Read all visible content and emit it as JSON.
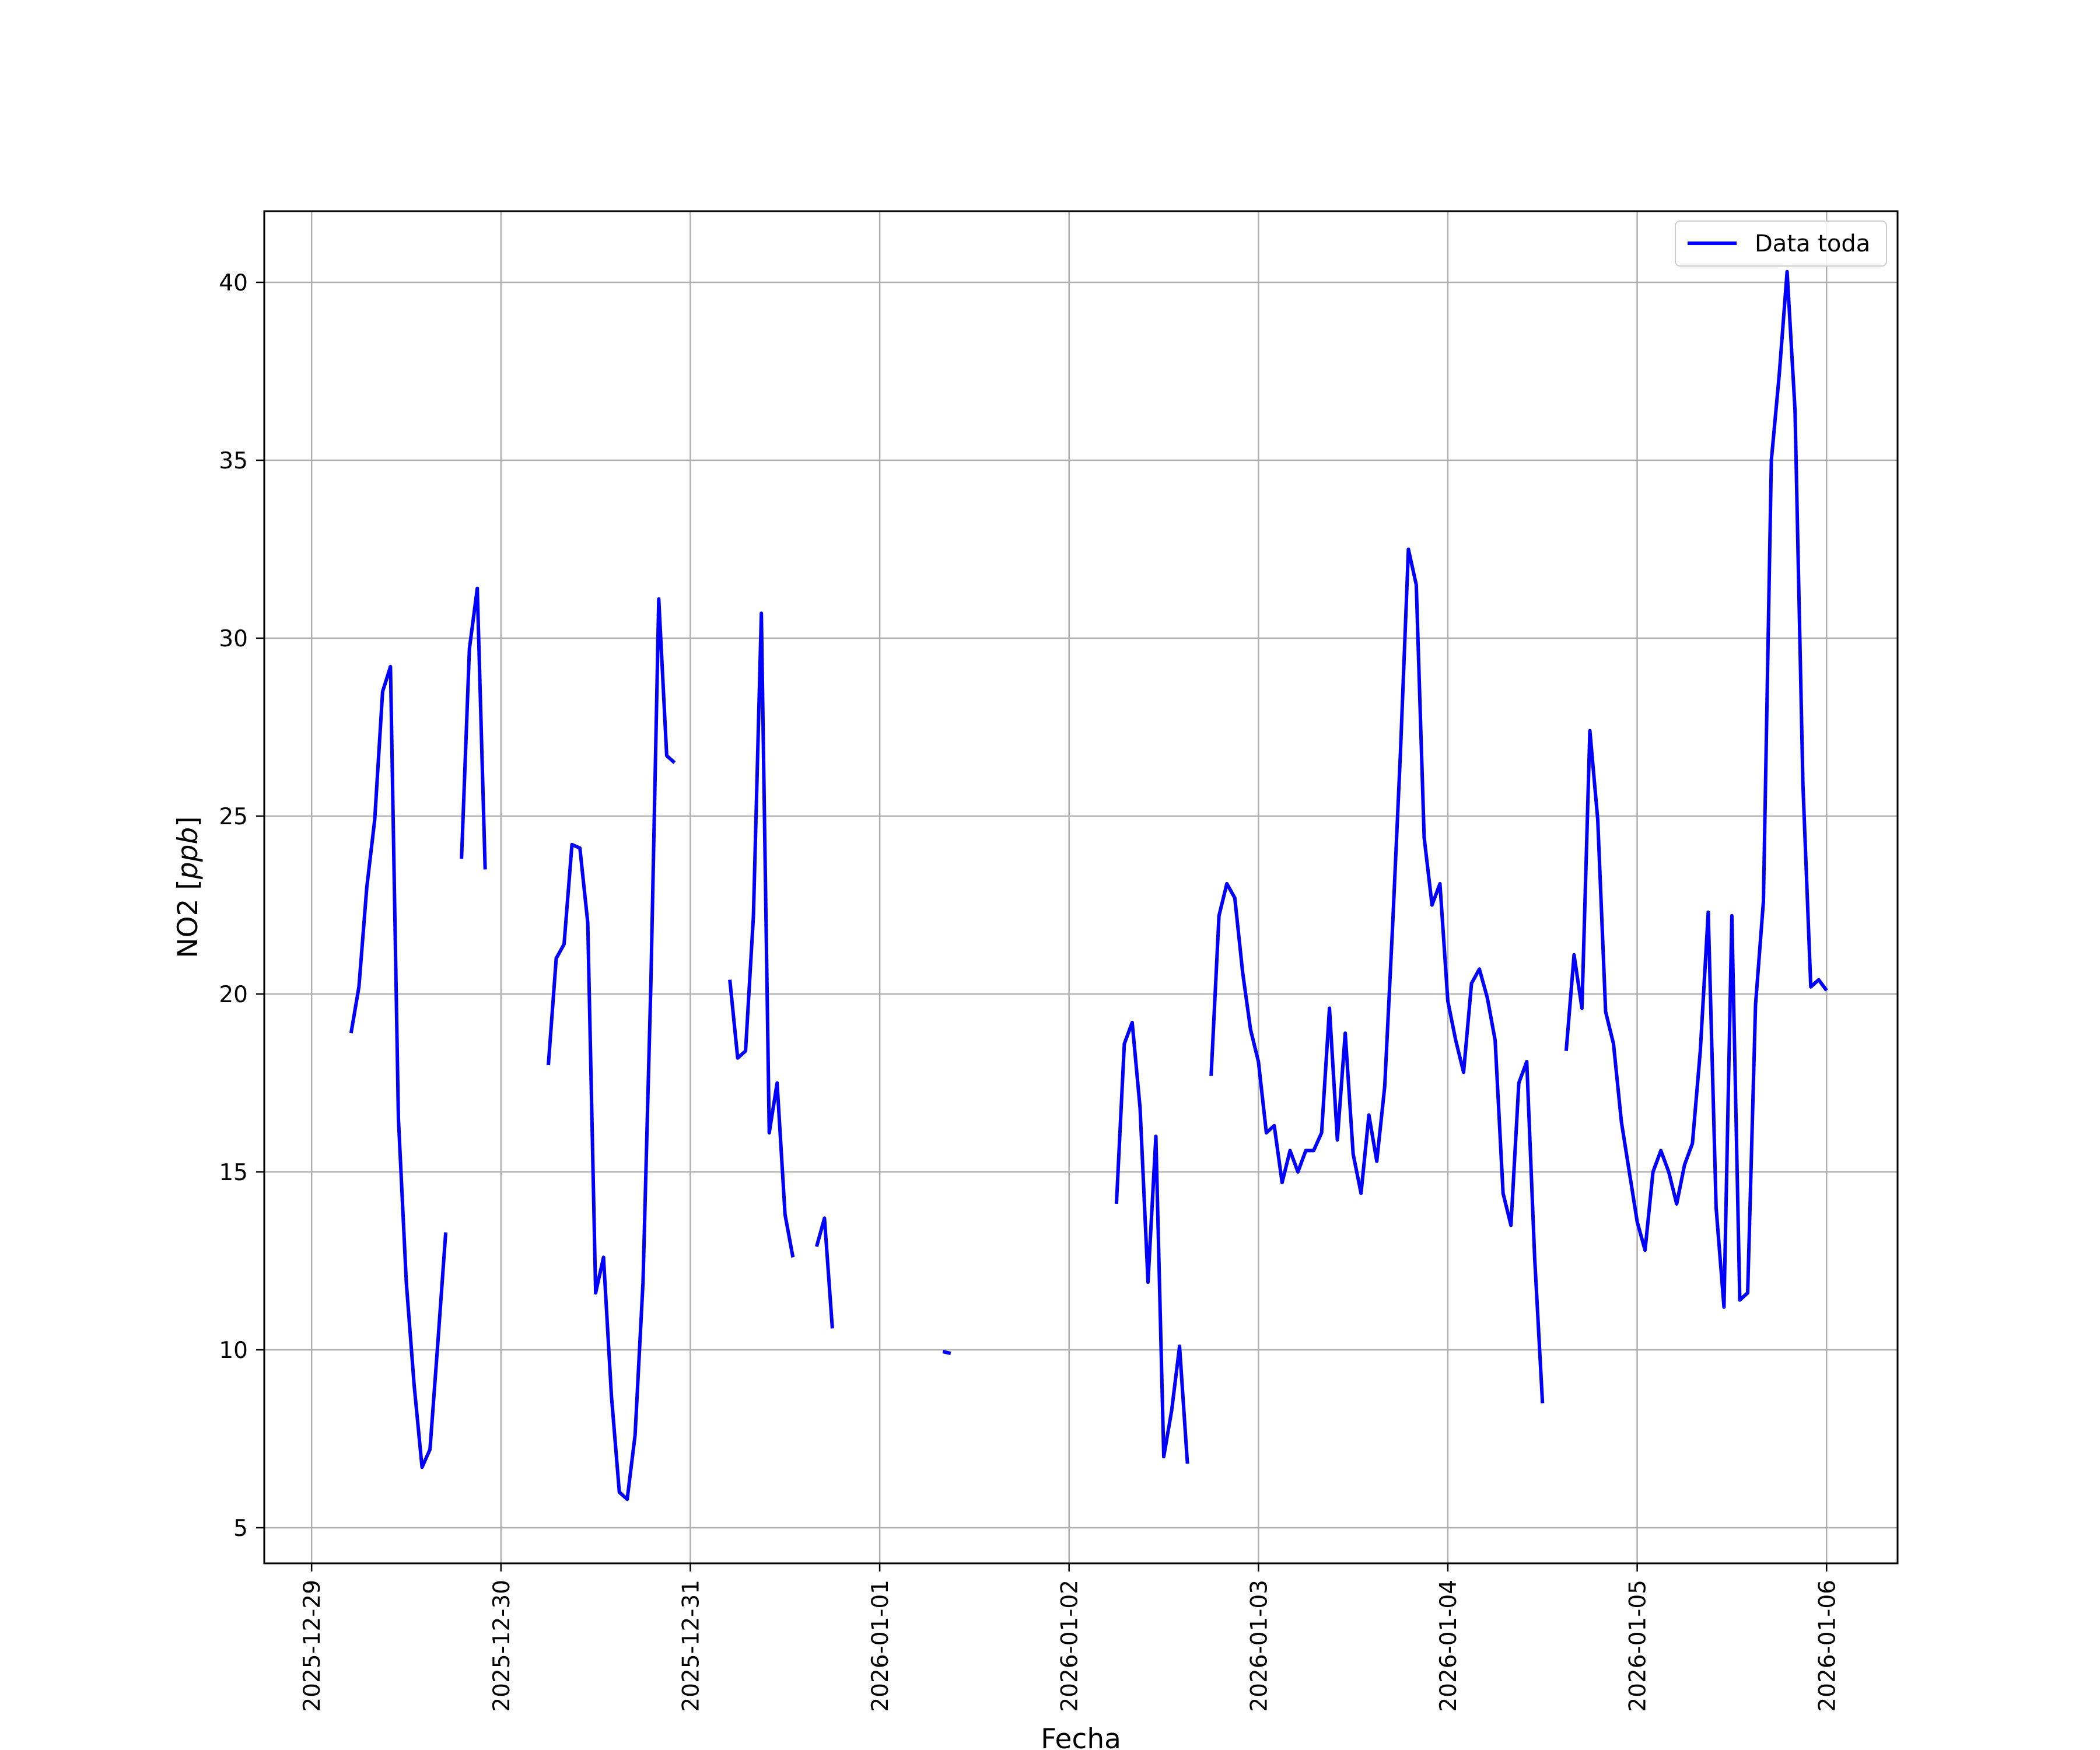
{
  "chart_data": {
    "type": "line",
    "xlabel": "Fecha",
    "ylabel_main": "NO2",
    "ylabel_unit": "ppb",
    "x_range": [
      "2025-12-28T18:00",
      "2026-01-06T09:00"
    ],
    "ylim": [
      4.0,
      42.0
    ],
    "grid": true,
    "legend_position": "top-right",
    "x_ticks": [
      "2025-12-29",
      "2025-12-30",
      "2025-12-31",
      "2026-01-01",
      "2026-01-02",
      "2026-01-03",
      "2026-01-04",
      "2026-01-05",
      "2026-01-06"
    ],
    "y_ticks": [
      5,
      10,
      15,
      20,
      25,
      30,
      35,
      40
    ],
    "series": [
      {
        "name": "Data toda",
        "color": "#0000ff",
        "segments": [
          [
            [
              "2025-12-29T05:00",
              18.9
            ],
            [
              "2025-12-29T06:00",
              20.2
            ],
            [
              "2025-12-29T07:00",
              23.0
            ],
            [
              "2025-12-29T08:00",
              24.9
            ],
            [
              "2025-12-29T09:00",
              28.5
            ],
            [
              "2025-12-29T10:00",
              29.2
            ],
            [
              "2025-12-29T11:00",
              16.5
            ],
            [
              "2025-12-29T12:00",
              11.9
            ],
            [
              "2025-12-29T13:00",
              9.0
            ],
            [
              "2025-12-29T14:00",
              6.7
            ],
            [
              "2025-12-29T15:00",
              7.2
            ],
            [
              "2025-12-29T16:00",
              10.2
            ],
            [
              "2025-12-29T17:00",
              13.3
            ]
          ],
          [
            [
              "2025-12-29T19:00",
              23.8
            ],
            [
              "2025-12-29T20:00",
              29.7
            ],
            [
              "2025-12-29T21:00",
              31.4
            ],
            [
              "2025-12-29T22:00",
              23.5
            ]
          ],
          [
            [
              "2025-12-30T06:00",
              18.0
            ],
            [
              "2025-12-30T07:00",
              21.0
            ],
            [
              "2025-12-30T08:00",
              21.4
            ],
            [
              "2025-12-30T09:00",
              24.2
            ],
            [
              "2025-12-30T10:00",
              24.1
            ],
            [
              "2025-12-30T11:00",
              22.0
            ],
            [
              "2025-12-30T12:00",
              11.6
            ],
            [
              "2025-12-30T13:00",
              12.6
            ],
            [
              "2025-12-30T14:00",
              8.7
            ],
            [
              "2025-12-30T15:00",
              6.0
            ],
            [
              "2025-12-30T16:00",
              5.8
            ],
            [
              "2025-12-30T17:00",
              7.6
            ],
            [
              "2025-12-30T18:00",
              11.9
            ],
            [
              "2025-12-30T19:00",
              20.3
            ],
            [
              "2025-12-30T20:00",
              31.1
            ],
            [
              "2025-12-30T21:00",
              26.7
            ],
            [
              "2025-12-30T22:00",
              26.5
            ]
          ],
          [
            [
              "2025-12-31T05:00",
              20.4
            ],
            [
              "2025-12-31T06:00",
              18.2
            ],
            [
              "2025-12-31T07:00",
              18.4
            ],
            [
              "2025-12-31T08:00",
              22.2
            ],
            [
              "2025-12-31T09:00",
              30.7
            ],
            [
              "2025-12-31T10:00",
              16.1
            ],
            [
              "2025-12-31T11:00",
              17.5
            ],
            [
              "2025-12-31T12:00",
              13.8
            ],
            [
              "2025-12-31T13:00",
              12.6
            ]
          ],
          [
            [
              "2025-12-31T16:00",
              12.9
            ],
            [
              "2025-12-31T17:00",
              13.7
            ],
            [
              "2025-12-31T18:00",
              10.6
            ]
          ],
          [
            [
              "2026-01-01T08:00",
              9.95
            ],
            [
              "2026-01-01T09:00",
              9.9
            ]
          ],
          [
            [
              "2026-01-02T06:00",
              14.1
            ],
            [
              "2026-01-02T07:00",
              18.6
            ],
            [
              "2026-01-02T08:00",
              19.2
            ],
            [
              "2026-01-02T09:00",
              16.8
            ],
            [
              "2026-01-02T10:00",
              11.9
            ],
            [
              "2026-01-02T11:00",
              16.0
            ],
            [
              "2026-01-02T12:00",
              7.0
            ],
            [
              "2026-01-02T13:00",
              8.3
            ],
            [
              "2026-01-02T14:00",
              10.1
            ],
            [
              "2026-01-02T15:00",
              6.8
            ]
          ],
          [
            [
              "2026-01-02T18:00",
              17.7
            ],
            [
              "2026-01-02T19:00",
              22.2
            ],
            [
              "2026-01-02T20:00",
              23.1
            ],
            [
              "2026-01-02T21:00",
              22.7
            ],
            [
              "2026-01-02T22:00",
              20.6
            ],
            [
              "2026-01-02T23:00",
              19.0
            ],
            [
              "2026-01-03T00:00",
              18.1
            ],
            [
              "2026-01-03T01:00",
              16.1
            ],
            [
              "2026-01-03T02:00",
              16.3
            ],
            [
              "2026-01-03T03:00",
              14.7
            ],
            [
              "2026-01-03T04:00",
              15.6
            ],
            [
              "2026-01-03T05:00",
              15.0
            ],
            [
              "2026-01-03T06:00",
              15.6
            ],
            [
              "2026-01-03T07:00",
              15.6
            ],
            [
              "2026-01-03T08:00",
              16.1
            ],
            [
              "2026-01-03T09:00",
              19.6
            ],
            [
              "2026-01-03T10:00",
              15.9
            ],
            [
              "2026-01-03T11:00",
              18.9
            ],
            [
              "2026-01-03T12:00",
              15.5
            ],
            [
              "2026-01-03T13:00",
              14.4
            ],
            [
              "2026-01-03T14:00",
              16.6
            ],
            [
              "2026-01-03T15:00",
              15.3
            ],
            [
              "2026-01-03T16:00",
              17.4
            ],
            [
              "2026-01-03T17:00",
              21.9
            ],
            [
              "2026-01-03T18:00",
              26.8
            ],
            [
              "2026-01-03T19:00",
              32.5
            ],
            [
              "2026-01-03T20:00",
              31.5
            ],
            [
              "2026-01-03T21:00",
              24.4
            ],
            [
              "2026-01-03T22:00",
              22.5
            ],
            [
              "2026-01-03T23:00",
              23.1
            ],
            [
              "2026-01-04T00:00",
              19.8
            ],
            [
              "2026-01-04T01:00",
              18.7
            ],
            [
              "2026-01-04T02:00",
              17.8
            ],
            [
              "2026-01-04T03:00",
              20.3
            ],
            [
              "2026-01-04T04:00",
              20.7
            ],
            [
              "2026-01-04T05:00",
              19.9
            ],
            [
              "2026-01-04T06:00",
              18.7
            ],
            [
              "2026-01-04T07:00",
              14.4
            ],
            [
              "2026-01-04T08:00",
              13.5
            ],
            [
              "2026-01-04T09:00",
              17.5
            ],
            [
              "2026-01-04T10:00",
              18.1
            ],
            [
              "2026-01-04T11:00",
              12.6
            ],
            [
              "2026-01-04T12:00",
              8.5
            ]
          ],
          [
            [
              "2026-01-04T15:00",
              18.4
            ],
            [
              "2026-01-04T16:00",
              21.1
            ],
            [
              "2026-01-04T17:00",
              19.6
            ],
            [
              "2026-01-04T18:00",
              27.4
            ],
            [
              "2026-01-04T19:00",
              24.9
            ],
            [
              "2026-01-04T20:00",
              19.5
            ],
            [
              "2026-01-04T21:00",
              18.6
            ],
            [
              "2026-01-04T22:00",
              16.4
            ],
            [
              "2026-01-04T23:00",
              15.0
            ],
            [
              "2026-01-05T00:00",
              13.6
            ],
            [
              "2026-01-05T01:00",
              12.8
            ],
            [
              "2026-01-05T02:00",
              15.0
            ],
            [
              "2026-01-05T03:00",
              15.6
            ],
            [
              "2026-01-05T04:00",
              15.0
            ],
            [
              "2026-01-05T05:00",
              14.1
            ],
            [
              "2026-01-05T06:00",
              15.2
            ],
            [
              "2026-01-05T07:00",
              15.8
            ],
            [
              "2026-01-05T08:00",
              18.4
            ],
            [
              "2026-01-05T09:00",
              22.3
            ],
            [
              "2026-01-05T10:00",
              14.0
            ],
            [
              "2026-01-05T11:00",
              11.2
            ],
            [
              "2026-01-05T12:00",
              22.2
            ],
            [
              "2026-01-05T13:00",
              11.4
            ],
            [
              "2026-01-05T14:00",
              11.6
            ],
            [
              "2026-01-05T15:00",
              19.7
            ],
            [
              "2026-01-05T16:00",
              22.6
            ],
            [
              "2026-01-05T17:00",
              35.0
            ],
            [
              "2026-01-05T18:00",
              37.4
            ],
            [
              "2026-01-05T19:00",
              40.3
            ],
            [
              "2026-01-05T20:00",
              36.4
            ],
            [
              "2026-01-05T21:00",
              25.9
            ],
            [
              "2026-01-05T22:00",
              20.2
            ],
            [
              "2026-01-05T23:00",
              20.4
            ],
            [
              "2026-01-06T00:00",
              20.1
            ]
          ]
        ]
      }
    ]
  }
}
